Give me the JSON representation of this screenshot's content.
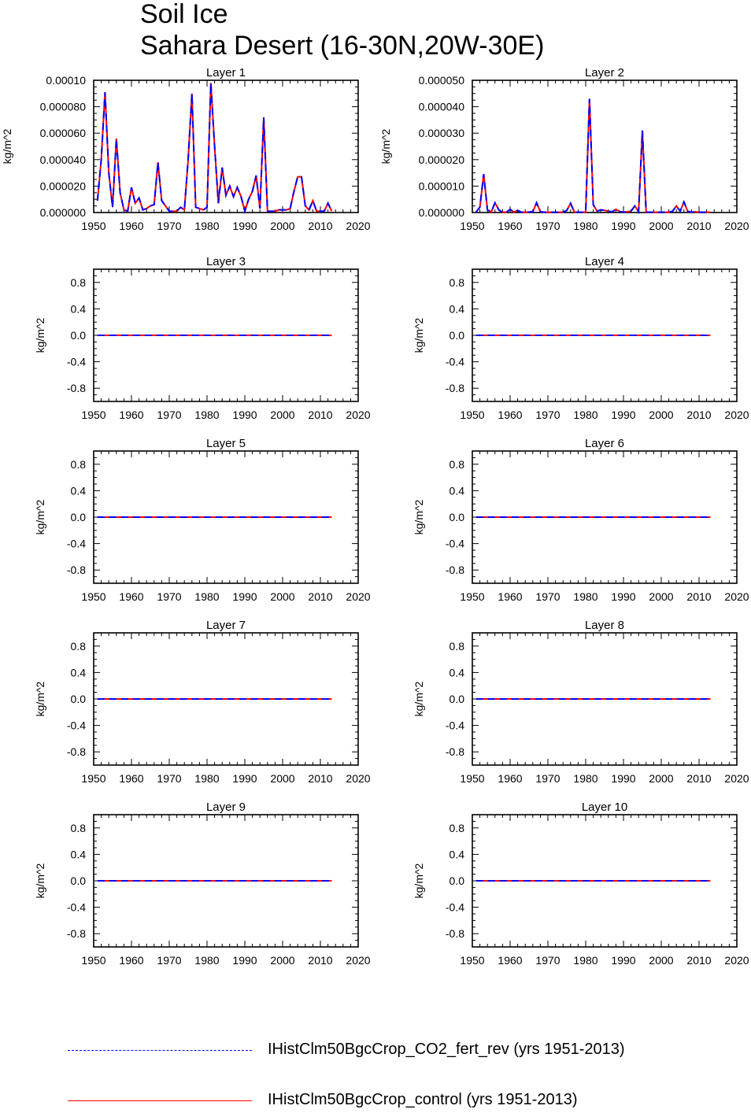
{
  "title": {
    "line1": "Soil Ice",
    "line2": "Sahara Desert (16-30N,20W-30E)"
  },
  "colors": {
    "co2_fert_rev": "#0000ff",
    "control": "#ff0000"
  },
  "legend": [
    {
      "label": "IHistClm50BgcCrop_CO2_fert_rev (yrs 1951-2013)",
      "style": "dashed",
      "color": "#0000ff"
    },
    {
      "label": "IHistClm50BgcCrop_control (yrs 1951-2013)",
      "style": "solid",
      "color": "#ff0000"
    }
  ],
  "chart_data": [
    {
      "type": "line",
      "title": "Layer 1",
      "ylabel": "kg/m^2",
      "xlim": [
        1950,
        2020
      ],
      "xticks": [
        "1950",
        "1960",
        "1970",
        "1980",
        "1990",
        "2000",
        "2010",
        "2020"
      ],
      "ylim": [
        0,
        0.0001
      ],
      "yticks": [
        "0.000000",
        "0.000020",
        "0.000040",
        "0.000060",
        "0.000080",
        "0.00010"
      ],
      "x": [
        1951,
        1952,
        1953,
        1954,
        1955,
        1956,
        1957,
        1958,
        1959,
        1960,
        1961,
        1962,
        1963,
        1964,
        1965,
        1966,
        1967,
        1968,
        1969,
        1970,
        1971,
        1972,
        1973,
        1974,
        1975,
        1976,
        1977,
        1978,
        1979,
        1980,
        1981,
        1982,
        1983,
        1984,
        1985,
        1986,
        1987,
        1988,
        1989,
        1990,
        1991,
        1992,
        1993,
        1994,
        1995,
        1996,
        1997,
        1998,
        1999,
        2000,
        2001,
        2002,
        2003,
        2004,
        2005,
        2006,
        2007,
        2008,
        2009,
        2010,
        2011,
        2012,
        2013
      ],
      "series": [
        {
          "name": "IHistClm50BgcCrop_CO2_fert_rev (yrs 1951-2013)",
          "values": [
            9e-06,
            4e-05,
            9.1e-05,
            3e-05,
            4e-06,
            5.6e-05,
            1.5e-05,
            2e-06,
            1e-06,
            1.9e-05,
            7e-06,
            1.1e-05,
            2e-06,
            3e-06,
            5e-06,
            6e-06,
            3.8e-05,
            9e-06,
            5e-06,
            1e-06,
            1e-06,
            1e-06,
            4e-06,
            2e-06,
            4e-05,
            9e-05,
            4e-06,
            3e-06,
            2e-06,
            4e-06,
            9.8e-05,
            5e-05,
            7e-06,
            3.4e-05,
            1.3e-05,
            2e-05,
            1.2e-05,
            1.9e-05,
            1.2e-05,
            1e-06,
            1e-05,
            1.6e-05,
            2.8e-05,
            3e-06,
            7.2e-05,
            1e-06,
            1e-06,
            1e-06,
            2e-06,
            2e-06,
            2e-06,
            3e-06,
            1.6e-05,
            2.7e-05,
            2.7e-05,
            5e-06,
            2e-06,
            9e-06,
            1e-06,
            1e-06,
            1e-06,
            7e-06,
            1e-06
          ]
        },
        {
          "name": "IHistClm50BgcCrop_control (yrs 1951-2013)",
          "values": [
            9e-06,
            4e-05,
            9.1e-05,
            3e-05,
            4e-06,
            5.6e-05,
            1.5e-05,
            2e-06,
            1e-06,
            1.9e-05,
            7e-06,
            1.1e-05,
            2e-06,
            3e-06,
            5e-06,
            6e-06,
            3.8e-05,
            9e-06,
            5e-06,
            1e-06,
            1e-06,
            1e-06,
            4e-06,
            2e-06,
            4e-05,
            9e-05,
            4e-06,
            3e-06,
            2e-06,
            4e-06,
            9.8e-05,
            5e-05,
            7e-06,
            3.4e-05,
            1.3e-05,
            2e-05,
            1.2e-05,
            1.9e-05,
            1.2e-05,
            1e-06,
            1e-05,
            1.6e-05,
            2.8e-05,
            3e-06,
            7.2e-05,
            1e-06,
            1e-06,
            1e-06,
            2e-06,
            2e-06,
            2e-06,
            3e-06,
            1.6e-05,
            2.7e-05,
            2.7e-05,
            5e-06,
            2e-06,
            9e-06,
            1e-06,
            1e-06,
            1e-06,
            7e-06,
            1e-06
          ]
        }
      ]
    },
    {
      "type": "line",
      "title": "Layer 2",
      "ylabel": "kg/m^2",
      "xlim": [
        1950,
        2020
      ],
      "xticks": [
        "1950",
        "1960",
        "1970",
        "1980",
        "1990",
        "2000",
        "2010",
        "2020"
      ],
      "ylim": [
        0,
        5e-05
      ],
      "yticks": [
        "0.000000",
        "0.000010",
        "0.000020",
        "0.000030",
        "0.000040",
        "0.000050"
      ],
      "x": [
        1951,
        1952,
        1953,
        1954,
        1955,
        1956,
        1957,
        1958,
        1959,
        1960,
        1961,
        1962,
        1963,
        1964,
        1965,
        1966,
        1967,
        1968,
        1969,
        1970,
        1971,
        1972,
        1973,
        1974,
        1975,
        1976,
        1977,
        1978,
        1979,
        1980,
        1981,
        1982,
        1983,
        1984,
        1985,
        1986,
        1987,
        1988,
        1989,
        1990,
        1991,
        1992,
        1993,
        1994,
        1995,
        1996,
        1997,
        1998,
        1999,
        2000,
        2001,
        2002,
        2003,
        2004,
        2005,
        2006,
        2007,
        2008,
        2009,
        2010,
        2011,
        2012,
        2013
      ],
      "series": [
        {
          "name": "IHistClm50BgcCrop_CO2_fert_rev (yrs 1951-2013)",
          "values": [
            2e-07,
            2e-06,
            1.45e-05,
            1e-06,
            2e-07,
            3.7e-06,
            1e-06,
            1e-07,
            1e-07,
            1.2e-06,
            2e-07,
            8e-07,
            1e-07,
            1e-07,
            2e-07,
            3e-07,
            3.7e-06,
            3e-07,
            1e-07,
            1e-07,
            1e-07,
            1e-07,
            1e-07,
            1e-07,
            8e-07,
            3.5e-06,
            2e-07,
            1e-07,
            1e-07,
            2e-07,
            4.3e-05,
            3e-06,
            5e-07,
            1e-06,
            8e-07,
            5e-07,
            3e-07,
            1.2e-06,
            4e-07,
            1e-07,
            3e-07,
            5e-07,
            2.5e-06,
            3e-07,
            3.1e-05,
            1e-07,
            1e-07,
            1e-07,
            1e-07,
            1e-07,
            1e-07,
            1e-07,
            5e-07,
            2.5e-06,
            5e-07,
            4e-06,
            5e-07,
            1e-07,
            3e-07,
            1e-07,
            1e-07,
            1e-07,
            1e-07
          ]
        },
        {
          "name": "IHistClm50BgcCrop_control (yrs 1951-2013)",
          "values": [
            2e-07,
            2e-06,
            1.45e-05,
            1e-06,
            2e-07,
            3.7e-06,
            1e-06,
            1e-07,
            1e-07,
            1.2e-06,
            2e-07,
            8e-07,
            1e-07,
            1e-07,
            2e-07,
            3e-07,
            3.7e-06,
            3e-07,
            1e-07,
            1e-07,
            1e-07,
            1e-07,
            1e-07,
            1e-07,
            8e-07,
            3.5e-06,
            2e-07,
            1e-07,
            1e-07,
            2e-07,
            4.3e-05,
            3e-06,
            5e-07,
            1e-06,
            8e-07,
            5e-07,
            3e-07,
            1.2e-06,
            4e-07,
            1e-07,
            3e-07,
            5e-07,
            2.5e-06,
            3e-07,
            3.1e-05,
            1e-07,
            1e-07,
            1e-07,
            1e-07,
            1e-07,
            1e-07,
            1e-07,
            5e-07,
            2.5e-06,
            5e-07,
            4e-06,
            5e-07,
            1e-07,
            3e-07,
            1e-07,
            1e-07,
            1e-07,
            1e-07
          ]
        }
      ]
    },
    {
      "type": "line",
      "title": "Layer 3",
      "ylabel": "kg/m^2",
      "xlim": [
        1950,
        2020
      ],
      "xticks": [
        "1950",
        "1960",
        "1970",
        "1980",
        "1990",
        "2000",
        "2010",
        "2020"
      ],
      "ylim": [
        -1,
        1
      ],
      "yticks": [
        "-0.8",
        "-0.4",
        "0.0",
        "0.4",
        "0.8"
      ],
      "x": [
        1951,
        2013
      ],
      "series": [
        {
          "name": "IHistClm50BgcCrop_CO2_fert_rev (yrs 1951-2013)",
          "values": [
            0,
            0
          ]
        },
        {
          "name": "IHistClm50BgcCrop_control (yrs 1951-2013)",
          "values": [
            0,
            0
          ]
        }
      ]
    },
    {
      "type": "line",
      "title": "Layer 4",
      "ylabel": "kg/m^2",
      "xlim": [
        1950,
        2020
      ],
      "xticks": [
        "1950",
        "1960",
        "1970",
        "1980",
        "1990",
        "2000",
        "2010",
        "2020"
      ],
      "ylim": [
        -1,
        1
      ],
      "yticks": [
        "-0.8",
        "-0.4",
        "0.0",
        "0.4",
        "0.8"
      ],
      "x": [
        1951,
        2013
      ],
      "series": [
        {
          "name": "IHistClm50BgcCrop_CO2_fert_rev (yrs 1951-2013)",
          "values": [
            0,
            0
          ]
        },
        {
          "name": "IHistClm50BgcCrop_control (yrs 1951-2013)",
          "values": [
            0,
            0
          ]
        }
      ]
    },
    {
      "type": "line",
      "title": "Layer 5",
      "ylabel": "kg/m^2",
      "xlim": [
        1950,
        2020
      ],
      "xticks": [
        "1950",
        "1960",
        "1970",
        "1980",
        "1990",
        "2000",
        "2010",
        "2020"
      ],
      "ylim": [
        -1,
        1
      ],
      "yticks": [
        "-0.8",
        "-0.4",
        "0.0",
        "0.4",
        "0.8"
      ],
      "x": [
        1951,
        2013
      ],
      "series": [
        {
          "name": "IHistClm50BgcCrop_CO2_fert_rev (yrs 1951-2013)",
          "values": [
            0,
            0
          ]
        },
        {
          "name": "IHistClm50BgcCrop_control (yrs 1951-2013)",
          "values": [
            0,
            0
          ]
        }
      ]
    },
    {
      "type": "line",
      "title": "Layer 6",
      "ylabel": "kg/m^2",
      "xlim": [
        1950,
        2020
      ],
      "xticks": [
        "1950",
        "1960",
        "1970",
        "1980",
        "1990",
        "2000",
        "2010",
        "2020"
      ],
      "ylim": [
        -1,
        1
      ],
      "yticks": [
        "-0.8",
        "-0.4",
        "0.0",
        "0.4",
        "0.8"
      ],
      "x": [
        1951,
        2013
      ],
      "series": [
        {
          "name": "IHistClm50BgcCrop_CO2_fert_rev (yrs 1951-2013)",
          "values": [
            0,
            0
          ]
        },
        {
          "name": "IHistClm50BgcCrop_control (yrs 1951-2013)",
          "values": [
            0,
            0
          ]
        }
      ]
    },
    {
      "type": "line",
      "title": "Layer 7",
      "ylabel": "kg/m^2",
      "xlim": [
        1950,
        2020
      ],
      "xticks": [
        "1950",
        "1960",
        "1970",
        "1980",
        "1990",
        "2000",
        "2010",
        "2020"
      ],
      "ylim": [
        -1,
        1
      ],
      "yticks": [
        "-0.8",
        "-0.4",
        "0.0",
        "0.4",
        "0.8"
      ],
      "x": [
        1951,
        2013
      ],
      "series": [
        {
          "name": "IHistClm50BgcCrop_CO2_fert_rev (yrs 1951-2013)",
          "values": [
            0,
            0
          ]
        },
        {
          "name": "IHistClm50BgcCrop_control (yrs 1951-2013)",
          "values": [
            0,
            0
          ]
        }
      ]
    },
    {
      "type": "line",
      "title": "Layer 8",
      "ylabel": "kg/m^2",
      "xlim": [
        1950,
        2020
      ],
      "xticks": [
        "1950",
        "1960",
        "1970",
        "1980",
        "1990",
        "2000",
        "2010",
        "2020"
      ],
      "ylim": [
        -1,
        1
      ],
      "yticks": [
        "-0.8",
        "-0.4",
        "0.0",
        "0.4",
        "0.8"
      ],
      "x": [
        1951,
        2013
      ],
      "series": [
        {
          "name": "IHistClm50BgcCrop_CO2_fert_rev (yrs 1951-2013)",
          "values": [
            0,
            0
          ]
        },
        {
          "name": "IHistClm50BgcCrop_control (yrs 1951-2013)",
          "values": [
            0,
            0
          ]
        }
      ]
    },
    {
      "type": "line",
      "title": "Layer 9",
      "ylabel": "kg/m^2",
      "xlim": [
        1950,
        2020
      ],
      "xticks": [
        "1950",
        "1960",
        "1970",
        "1980",
        "1990",
        "2000",
        "2010",
        "2020"
      ],
      "ylim": [
        -1,
        1
      ],
      "yticks": [
        "-0.8",
        "-0.4",
        "0.0",
        "0.4",
        "0.8"
      ],
      "x": [
        1951,
        2013
      ],
      "series": [
        {
          "name": "IHistClm50BgcCrop_CO2_fert_rev (yrs 1951-2013)",
          "values": [
            0,
            0
          ]
        },
        {
          "name": "IHistClm50BgcCrop_control (yrs 1951-2013)",
          "values": [
            0,
            0
          ]
        }
      ]
    },
    {
      "type": "line",
      "title": "Layer 10",
      "ylabel": "kg/m^2",
      "xlim": [
        1950,
        2020
      ],
      "xticks": [
        "1950",
        "1960",
        "1970",
        "1980",
        "1990",
        "2000",
        "2010",
        "2020"
      ],
      "ylim": [
        -1,
        1
      ],
      "yticks": [
        "-0.8",
        "-0.4",
        "0.0",
        "0.4",
        "0.8"
      ],
      "x": [
        1951,
        2013
      ],
      "series": [
        {
          "name": "IHistClm50BgcCrop_CO2_fert_rev (yrs 1951-2013)",
          "values": [
            0,
            0
          ]
        },
        {
          "name": "IHistClm50BgcCrop_control (yrs 1951-2013)",
          "values": [
            0,
            0
          ]
        }
      ]
    }
  ]
}
